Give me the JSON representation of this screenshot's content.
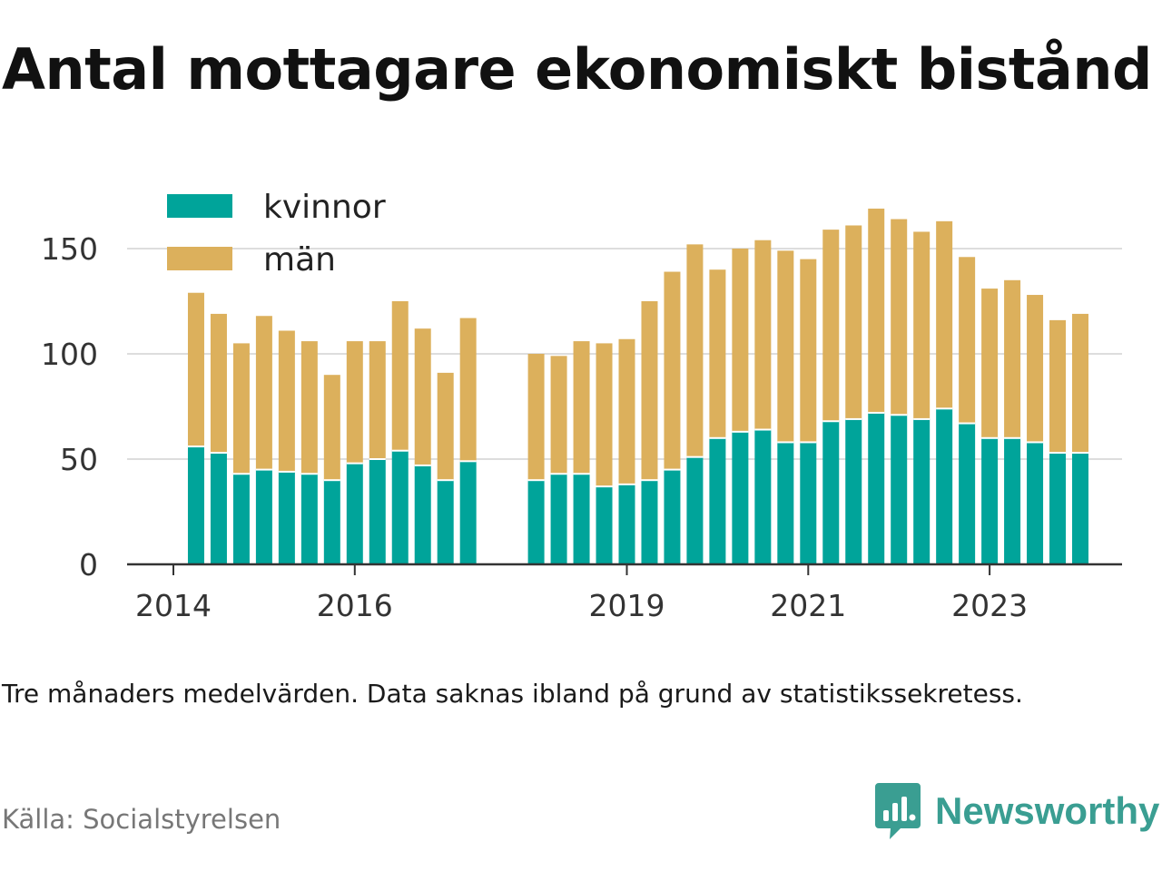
{
  "title": "Antal mottagare ekonomiskt bistånd",
  "note": "Tre månaders medelvärden. Data saknas ibland på grund av statistikssekretess.",
  "source": "Källa: Socialstyrelsen",
  "brand": {
    "name": "Newsworthy",
    "icon": "newsworthy-logo-icon",
    "color": "#3a9e92"
  },
  "colors": {
    "kvinnor": "#00a49a",
    "man": "#dcb05c",
    "grid": "#dddddd",
    "axis": "#333333",
    "text": "#333333"
  },
  "chart_data": {
    "type": "bar",
    "stacked": true,
    "title": "Antal mottagare ekonomiskt bistånd",
    "xlabel": "",
    "ylabel": "",
    "ylim": [
      0,
      170
    ],
    "yticks": [
      0,
      50,
      100,
      150
    ],
    "xticks": [
      {
        "label": "2014",
        "x": 2014.0
      },
      {
        "label": "2016",
        "x": 2016.0
      },
      {
        "label": "2019",
        "x": 2019.0
      },
      {
        "label": "2021",
        "x": 2021.0
      },
      {
        "label": "2023",
        "x": 2023.0
      }
    ],
    "xlim": [
      2013.5,
      2024.5
    ],
    "grid": true,
    "legend_position": "top-left",
    "x": [
      2014.25,
      2014.5,
      2014.75,
      2015.0,
      2015.25,
      2015.5,
      2015.75,
      2016.0,
      2016.25,
      2016.5,
      2016.75,
      2017.0,
      2017.25,
      2018.0,
      2018.25,
      2018.5,
      2018.75,
      2019.0,
      2019.25,
      2019.5,
      2019.75,
      2020.0,
      2020.25,
      2020.5,
      2020.75,
      2021.0,
      2021.25,
      2021.5,
      2021.75,
      2022.0,
      2022.25,
      2022.5,
      2022.75,
      2023.0,
      2023.25,
      2023.5,
      2023.75,
      2024.0
    ],
    "series": [
      {
        "name": "kvinnor",
        "color": "#00a49a",
        "values": [
          56,
          53,
          43,
          45,
          44,
          43,
          40,
          48,
          50,
          54,
          47,
          40,
          49,
          40,
          43,
          43,
          37,
          38,
          40,
          45,
          51,
          60,
          63,
          64,
          58,
          58,
          68,
          69,
          72,
          71,
          69,
          74,
          67,
          60,
          60,
          58,
          53,
          53
        ]
      },
      {
        "name": "män",
        "color": "#dcb05c",
        "values": [
          73,
          66,
          62,
          73,
          67,
          63,
          50,
          58,
          56,
          71,
          65,
          51,
          68,
          60,
          56,
          63,
          68,
          69,
          85,
          94,
          101,
          80,
          87,
          90,
          91,
          87,
          91,
          92,
          97,
          93,
          89,
          89,
          79,
          71,
          75,
          70,
          63,
          66
        ]
      }
    ]
  }
}
